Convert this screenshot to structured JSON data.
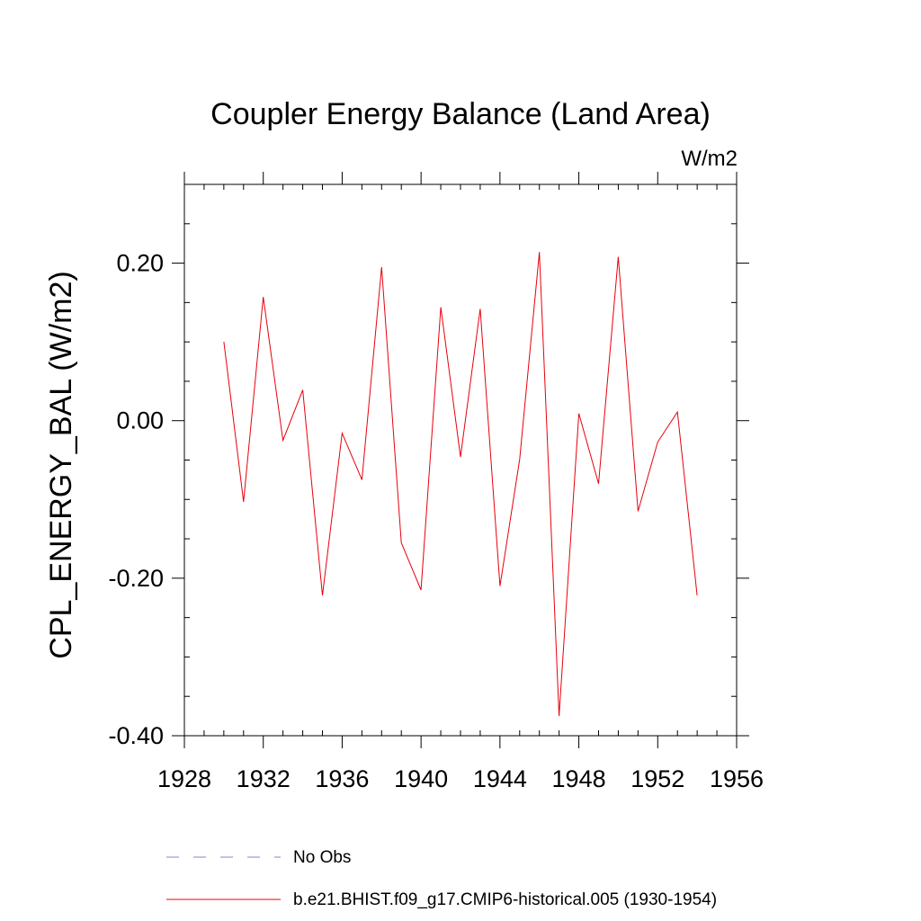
{
  "chart_data": {
    "type": "line",
    "title": "Coupler Energy Balance (Land Area)",
    "units_label": "W/m2",
    "xlabel": "",
    "ylabel": "CPL_ENERGY_BAL  (W/m2)",
    "xlim": [
      1928,
      1956
    ],
    "ylim": [
      -0.4,
      0.3
    ],
    "x_ticks": [
      1928,
      1932,
      1936,
      1940,
      1944,
      1948,
      1952,
      1956
    ],
    "x_tick_labels": [
      "1928",
      "1932",
      "1936",
      "1940",
      "1944",
      "1948",
      "1952",
      "1956"
    ],
    "y_ticks": [
      -0.4,
      -0.2,
      0.0,
      0.2
    ],
    "y_tick_labels": [
      "-0.40",
      "-0.20",
      "0.00",
      "0.20"
    ],
    "grid": false,
    "series": [
      {
        "name": "b.e21.BHIST.f09_g17.CMIP6-historical.005 (1930-1954)",
        "color": "#e8000b",
        "x": [
          1930,
          1931,
          1932,
          1933,
          1934,
          1935,
          1936,
          1937,
          1938,
          1939,
          1940,
          1941,
          1942,
          1943,
          1944,
          1945,
          1946,
          1947,
          1948,
          1949,
          1950,
          1951,
          1952,
          1953,
          1954
        ],
        "values": [
          0.1,
          -0.103,
          0.157,
          -0.025,
          0.039,
          -0.222,
          -0.016,
          -0.075,
          0.195,
          -0.155,
          -0.215,
          0.144,
          -0.046,
          0.142,
          -0.21,
          -0.049,
          0.214,
          -0.375,
          0.009,
          -0.08,
          0.208,
          -0.115,
          -0.027,
          0.011,
          -0.222
        ]
      }
    ],
    "legend": [
      {
        "label": "No Obs",
        "style": "dashed",
        "color": "#8a7fd6"
      },
      {
        "label": "b.e21.BHIST.f09_g17.CMIP6-historical.005 (1930-1954)",
        "style": "solid",
        "color": "#e8000b"
      }
    ]
  }
}
